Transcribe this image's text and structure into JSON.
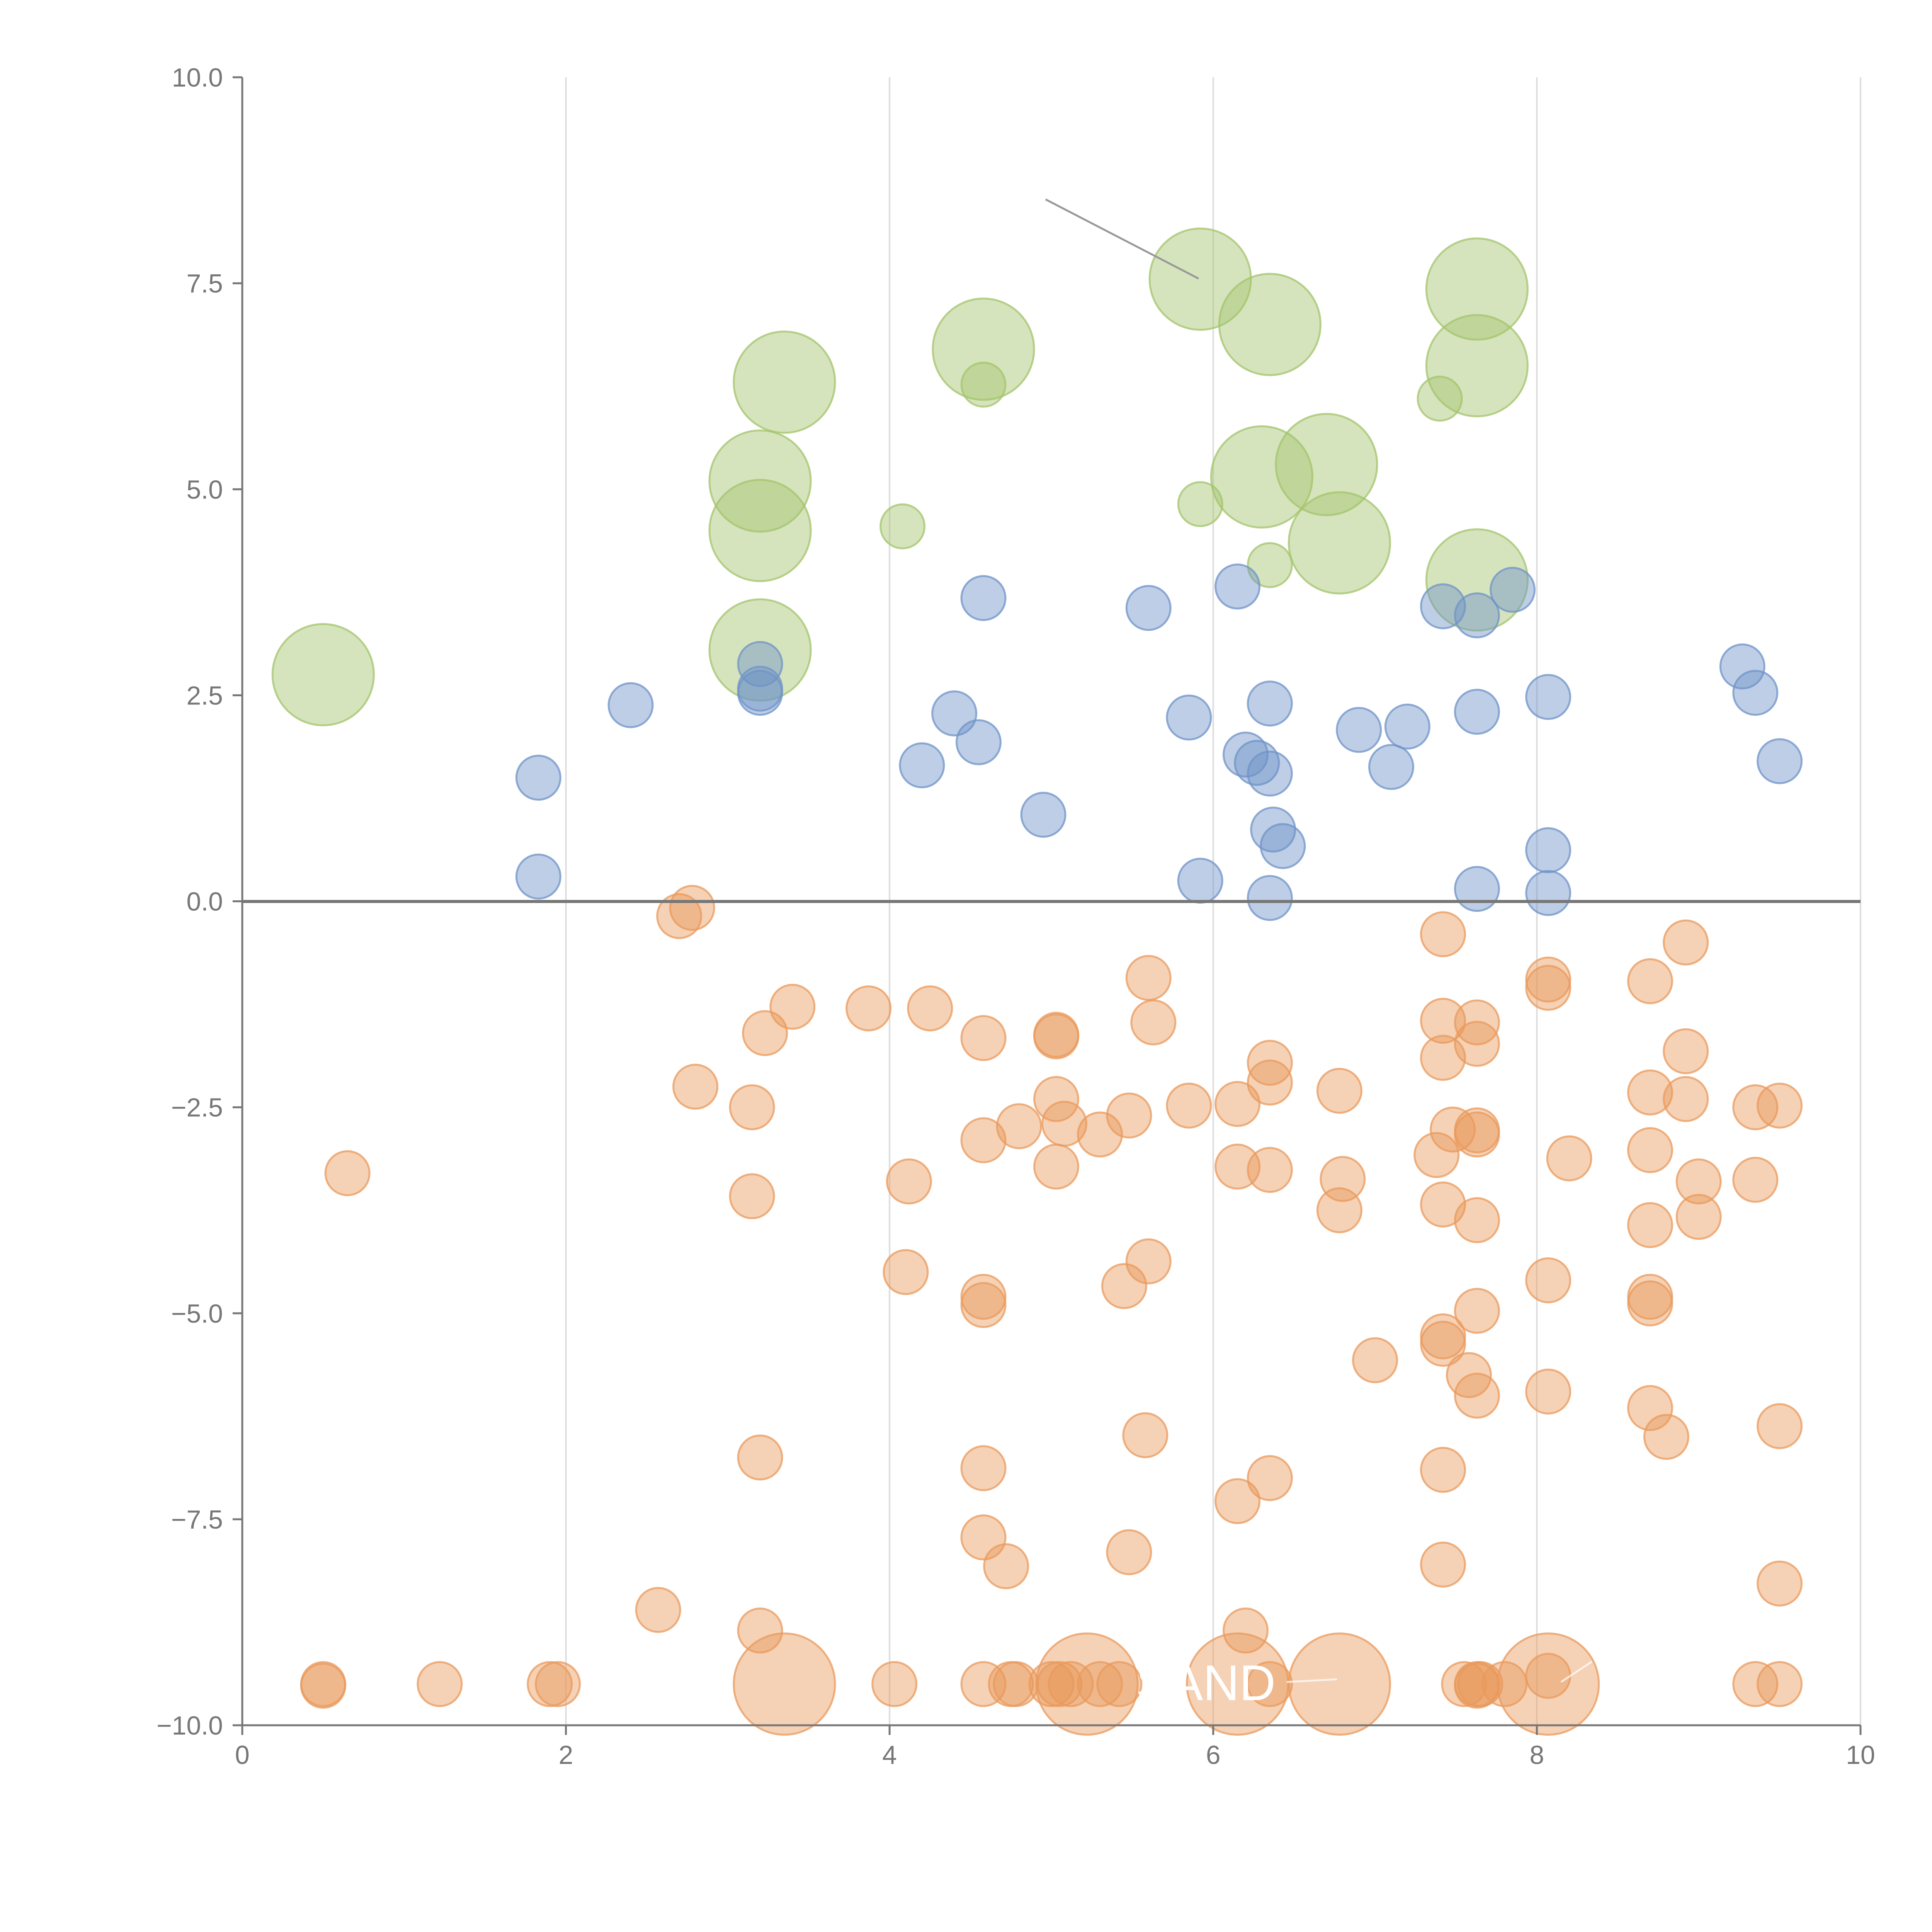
{
  "chart_data": {
    "type": "scatter",
    "title": "",
    "xlabel": "",
    "ylabel": "",
    "xlim": [
      0,
      10
    ],
    "ylim": [
      -10,
      10
    ],
    "x_ticks": [
      0,
      2,
      4,
      6,
      8,
      10
    ],
    "x_tick_labels": [
      "0",
      "2",
      "4",
      "6",
      "8",
      "10"
    ],
    "y_ticks": [
      10,
      7.5,
      5,
      2.5,
      0,
      -2.5,
      -5,
      -7.5,
      -10
    ],
    "y_tick_labels": [
      "10.0",
      "7.5",
      "5.0",
      "2.5",
      "0.0",
      "−2.5",
      "−5.0",
      "−7.5",
      "−10.0"
    ],
    "vertical_grid": true,
    "zero_line": true,
    "colors": {
      "green": "#a3c46c",
      "blue": "#6f93c8",
      "orange": "#e99a5c"
    },
    "text_labels": [
      "SAND"
    ],
    "series": [
      {
        "name": "green",
        "color": "#a3c46c",
        "points": [
          {
            "x": 0.5,
            "y": 2.75,
            "s": 2.3
          },
          {
            "x": 3.35,
            "y": 6.3,
            "s": 2.3
          },
          {
            "x": 3.2,
            "y": 5.1,
            "s": 2.3
          },
          {
            "x": 3.2,
            "y": 4.5,
            "s": 2.3
          },
          {
            "x": 3.2,
            "y": 3.05,
            "s": 2.3
          },
          {
            "x": 4.58,
            "y": 6.7,
            "s": 2.3
          },
          {
            "x": 4.58,
            "y": 6.27,
            "s": 1
          },
          {
            "x": 4.08,
            "y": 4.55,
            "s": 1
          },
          {
            "x": 5.92,
            "y": 7.55,
            "s": 2.3
          },
          {
            "x": 6.35,
            "y": 7.0,
            "s": 2.3
          },
          {
            "x": 6.3,
            "y": 5.15,
            "s": 2.3
          },
          {
            "x": 6.7,
            "y": 5.3,
            "s": 2.3
          },
          {
            "x": 6.78,
            "y": 4.35,
            "s": 2.3
          },
          {
            "x": 5.92,
            "y": 4.82,
            "s": 1
          },
          {
            "x": 6.35,
            "y": 4.08,
            "s": 1
          },
          {
            "x": 7.4,
            "y": 6.1,
            "s": 1
          },
          {
            "x": 7.63,
            "y": 7.43,
            "s": 2.3
          },
          {
            "x": 7.63,
            "y": 6.5,
            "s": 2.3
          },
          {
            "x": 7.63,
            "y": 3.9,
            "s": 2.3
          }
        ]
      },
      {
        "name": "blue",
        "color": "#6f93c8",
        "points": [
          {
            "x": 1.83,
            "y": 1.5
          },
          {
            "x": 1.83,
            "y": 0.3
          },
          {
            "x": 2.4,
            "y": 2.38
          },
          {
            "x": 3.2,
            "y": 2.88
          },
          {
            "x": 3.2,
            "y": 2.58
          },
          {
            "x": 3.2,
            "y": 2.53
          },
          {
            "x": 4.2,
            "y": 1.65
          },
          {
            "x": 4.4,
            "y": 2.28
          },
          {
            "x": 4.58,
            "y": 3.68
          },
          {
            "x": 4.55,
            "y": 1.93
          },
          {
            "x": 4.95,
            "y": 1.05
          },
          {
            "x": 5.6,
            "y": 3.56
          },
          {
            "x": 5.85,
            "y": 2.23
          },
          {
            "x": 5.92,
            "y": 0.25
          },
          {
            "x": 6.15,
            "y": 3.82
          },
          {
            "x": 6.2,
            "y": 1.78
          },
          {
            "x": 6.27,
            "y": 1.68
          },
          {
            "x": 6.35,
            "y": 1.55
          },
          {
            "x": 6.35,
            "y": 2.4
          },
          {
            "x": 6.37,
            "y": 0.87
          },
          {
            "x": 6.43,
            "y": 0.67
          },
          {
            "x": 6.35,
            "y": 0.04
          },
          {
            "x": 6.9,
            "y": 2.08
          },
          {
            "x": 7.1,
            "y": 1.63
          },
          {
            "x": 7.2,
            "y": 2.12
          },
          {
            "x": 7.42,
            "y": 3.58
          },
          {
            "x": 7.63,
            "y": 3.47
          },
          {
            "x": 7.63,
            "y": 2.3
          },
          {
            "x": 7.63,
            "y": 0.15
          },
          {
            "x": 7.85,
            "y": 3.78
          },
          {
            "x": 8.07,
            "y": 2.48
          },
          {
            "x": 8.07,
            "y": 0.62
          },
          {
            "x": 8.07,
            "y": 0.1
          },
          {
            "x": 9.27,
            "y": 2.85
          },
          {
            "x": 9.35,
            "y": 2.53
          },
          {
            "x": 9.5,
            "y": 1.7
          }
        ]
      },
      {
        "name": "orange",
        "color": "#e99a5c",
        "points": [
          {
            "x": 2.7,
            "y": -0.18
          },
          {
            "x": 2.78,
            "y": -0.08
          },
          {
            "x": 0.65,
            "y": -3.3
          },
          {
            "x": 2.8,
            "y": -2.25
          },
          {
            "x": 3.15,
            "y": -2.5
          },
          {
            "x": 3.15,
            "y": -3.58
          },
          {
            "x": 3.23,
            "y": -1.6
          },
          {
            "x": 3.4,
            "y": -1.28
          },
          {
            "x": 3.87,
            "y": -1.3
          },
          {
            "x": 4.25,
            "y": -1.3
          },
          {
            "x": 4.58,
            "y": -1.66
          },
          {
            "x": 5.03,
            "y": -1.64
          },
          {
            "x": 5.03,
            "y": -1.62
          },
          {
            "x": 5.6,
            "y": -0.93
          },
          {
            "x": 5.63,
            "y": -1.47
          },
          {
            "x": 4.12,
            "y": -3.4
          },
          {
            "x": 4.58,
            "y": -2.9
          },
          {
            "x": 4.8,
            "y": -2.73
          },
          {
            "x": 5.03,
            "y": -2.4
          },
          {
            "x": 5.03,
            "y": -3.22
          },
          {
            "x": 5.08,
            "y": -2.7
          },
          {
            "x": 5.3,
            "y": -2.83
          },
          {
            "x": 5.48,
            "y": -2.6
          },
          {
            "x": 5.85,
            "y": -2.48
          },
          {
            "x": 6.15,
            "y": -2.46
          },
          {
            "x": 6.15,
            "y": -3.22
          },
          {
            "x": 6.35,
            "y": -1.96
          },
          {
            "x": 6.35,
            "y": -2.2
          },
          {
            "x": 6.35,
            "y": -3.26
          },
          {
            "x": 6.78,
            "y": -2.3
          },
          {
            "x": 6.8,
            "y": -3.37
          },
          {
            "x": 6.78,
            "y": -3.75
          },
          {
            "x": 4.1,
            "y": -4.5
          },
          {
            "x": 4.58,
            "y": -4.8
          },
          {
            "x": 4.58,
            "y": -4.9
          },
          {
            "x": 5.45,
            "y": -4.67
          },
          {
            "x": 5.6,
            "y": -4.37
          },
          {
            "x": 7.0,
            "y": -5.57
          },
          {
            "x": 7.42,
            "y": -0.4
          },
          {
            "x": 7.42,
            "y": -1.45
          },
          {
            "x": 7.42,
            "y": -1.9
          },
          {
            "x": 7.48,
            "y": -2.77
          },
          {
            "x": 7.38,
            "y": -3.08
          },
          {
            "x": 7.42,
            "y": -3.68
          },
          {
            "x": 7.63,
            "y": -1.47
          },
          {
            "x": 7.63,
            "y": -1.73
          },
          {
            "x": 7.63,
            "y": -2.78
          },
          {
            "x": 7.63,
            "y": -2.83
          },
          {
            "x": 7.63,
            "y": -3.87
          },
          {
            "x": 7.63,
            "y": -4.97
          },
          {
            "x": 7.42,
            "y": -5.28
          },
          {
            "x": 7.42,
            "y": -5.37
          },
          {
            "x": 7.58,
            "y": -5.75
          },
          {
            "x": 7.63,
            "y": -6.0
          },
          {
            "x": 8.07,
            "y": -0.95
          },
          {
            "x": 8.07,
            "y": -1.05
          },
          {
            "x": 8.2,
            "y": -3.12
          },
          {
            "x": 8.07,
            "y": -4.6
          },
          {
            "x": 8.07,
            "y": -5.95
          },
          {
            "x": 8.7,
            "y": -0.97
          },
          {
            "x": 8.92,
            "y": -0.5
          },
          {
            "x": 8.7,
            "y": -2.32
          },
          {
            "x": 8.92,
            "y": -1.82
          },
          {
            "x": 8.92,
            "y": -2.4
          },
          {
            "x": 8.7,
            "y": -3.02
          },
          {
            "x": 8.7,
            "y": -3.93
          },
          {
            "x": 9.0,
            "y": -3.4
          },
          {
            "x": 9.0,
            "y": -3.83
          },
          {
            "x": 8.7,
            "y": -4.8
          },
          {
            "x": 8.7,
            "y": -4.88
          },
          {
            "x": 8.7,
            "y": -6.15
          },
          {
            "x": 8.8,
            "y": -6.5
          },
          {
            "x": 9.35,
            "y": -2.5
          },
          {
            "x": 9.5,
            "y": -2.48
          },
          {
            "x": 9.35,
            "y": -3.38
          },
          {
            "x": 9.5,
            "y": -6.37
          },
          {
            "x": 9.5,
            "y": -8.28
          },
          {
            "x": 3.2,
            "y": -6.75
          },
          {
            "x": 3.2,
            "y": -8.85
          },
          {
            "x": 2.57,
            "y": -8.6
          },
          {
            "x": 4.58,
            "y": -6.88
          },
          {
            "x": 4.58,
            "y": -7.72
          },
          {
            "x": 4.72,
            "y": -8.07
          },
          {
            "x": 5.48,
            "y": -7.9
          },
          {
            "x": 5.58,
            "y": -6.48
          },
          {
            "x": 6.15,
            "y": -7.28
          },
          {
            "x": 6.35,
            "y": -7.0
          },
          {
            "x": 6.2,
            "y": -8.85
          },
          {
            "x": 7.42,
            "y": -6.9
          },
          {
            "x": 7.42,
            "y": -8.05
          },
          {
            "x": 0.5,
            "y": -9.5
          },
          {
            "x": 0.5,
            "y": -9.52
          },
          {
            "x": 1.22,
            "y": -9.5
          },
          {
            "x": 1.9,
            "y": -9.5
          },
          {
            "x": 1.95,
            "y": -9.5
          },
          {
            "x": 3.35,
            "y": -9.5,
            "s": 2.3
          },
          {
            "x": 4.03,
            "y": -9.5
          },
          {
            "x": 4.58,
            "y": -9.5
          },
          {
            "x": 4.75,
            "y": -9.5
          },
          {
            "x": 4.78,
            "y": -9.5
          },
          {
            "x": 5.0,
            "y": -9.5
          },
          {
            "x": 5.05,
            "y": -9.5
          },
          {
            "x": 5.12,
            "y": -9.5
          },
          {
            "x": 5.22,
            "y": -9.5,
            "s": 2.3
          },
          {
            "x": 5.3,
            "y": -9.5
          },
          {
            "x": 5.42,
            "y": -9.5
          },
          {
            "x": 6.15,
            "y": -9.5,
            "s": 2.3
          },
          {
            "x": 6.35,
            "y": -9.5
          },
          {
            "x": 6.78,
            "y": -9.5,
            "s": 2.3
          },
          {
            "x": 7.55,
            "y": -9.5
          },
          {
            "x": 7.63,
            "y": -9.5
          },
          {
            "x": 7.63,
            "y": -9.52
          },
          {
            "x": 7.65,
            "y": -9.5
          },
          {
            "x": 7.8,
            "y": -9.5
          },
          {
            "x": 8.07,
            "y": -9.5,
            "s": 2.3
          },
          {
            "x": 8.07,
            "y": -9.4
          },
          {
            "x": 9.35,
            "y": -9.5
          },
          {
            "x": 9.5,
            "y": -9.5
          }
        ]
      }
    ]
  }
}
